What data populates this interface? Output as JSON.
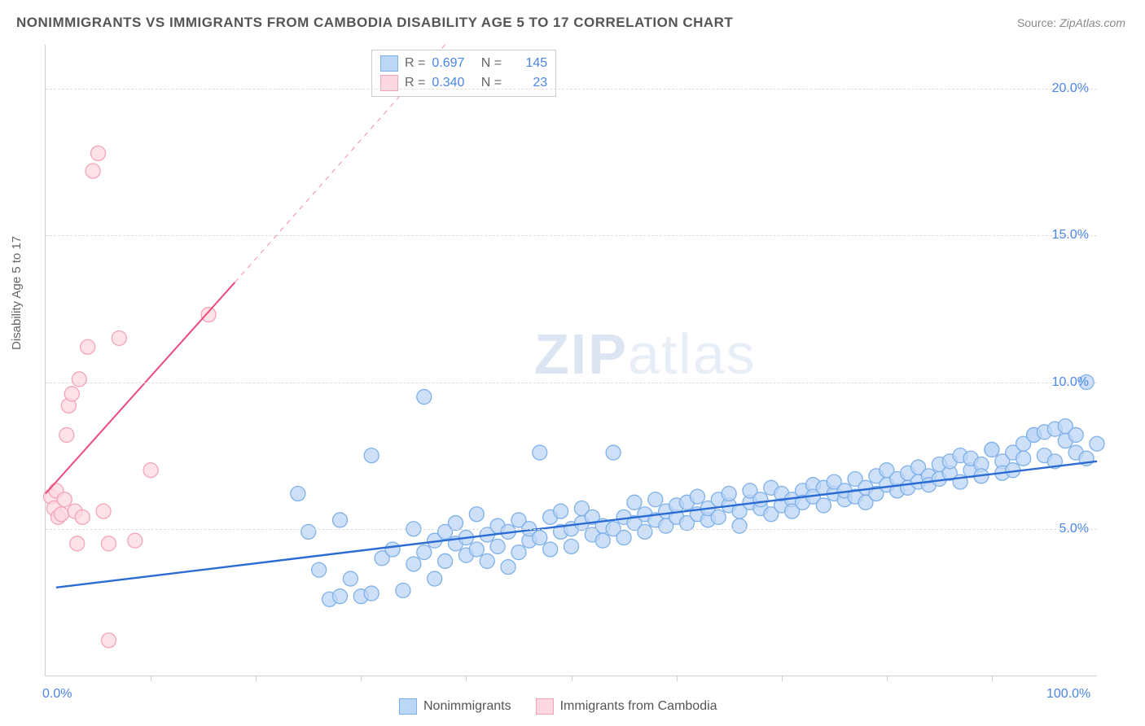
{
  "title": "NONIMMIGRANTS VS IMMIGRANTS FROM CAMBODIA DISABILITY AGE 5 TO 17 CORRELATION CHART",
  "source_label": "Source:",
  "source_value": "ZipAtlas.com",
  "ylabel": "Disability Age 5 to 17",
  "watermark_a": "ZIP",
  "watermark_b": "atlas",
  "chart": {
    "type": "scatter",
    "background": "#ffffff",
    "grid_color": "#dddddd",
    "axis_color": "#d0d0d0",
    "xlim": [
      0,
      100
    ],
    "ylim": [
      0,
      21.5
    ],
    "xticks_minor": [
      10,
      20,
      30,
      40,
      50,
      60,
      70,
      80,
      90
    ],
    "xtick_labels": [
      {
        "x": 0,
        "label": "0.0%"
      },
      {
        "x": 100,
        "label": "100.0%"
      }
    ],
    "yticks": [
      {
        "y": 5,
        "label": "5.0%"
      },
      {
        "y": 10,
        "label": "10.0%"
      },
      {
        "y": 15,
        "label": "15.0%"
      },
      {
        "y": 20,
        "label": "20.0%"
      }
    ],
    "series": [
      {
        "name": "Nonimmigrants",
        "color_fill": "#bcd6f5",
        "color_stroke": "#7fb1e8",
        "line_color": "#2b6cd4",
        "line_width": 2.4,
        "marker_r": 9,
        "R": "0.697",
        "N": "145",
        "trend": {
          "x1": 1,
          "y1": 3.0,
          "x2": 100,
          "y2": 7.3
        },
        "points": [
          [
            24,
            6.2
          ],
          [
            25,
            4.9
          ],
          [
            26,
            3.6
          ],
          [
            27,
            2.6
          ],
          [
            28,
            2.7
          ],
          [
            28,
            5.3
          ],
          [
            29,
            3.3
          ],
          [
            30,
            2.7
          ],
          [
            31,
            7.5
          ],
          [
            31,
            2.8
          ],
          [
            32,
            4.0
          ],
          [
            33,
            4.3
          ],
          [
            34,
            2.9
          ],
          [
            35,
            3.8
          ],
          [
            35,
            5.0
          ],
          [
            36,
            4.2
          ],
          [
            36,
            9.5
          ],
          [
            37,
            4.6
          ],
          [
            37,
            3.3
          ],
          [
            38,
            4.9
          ],
          [
            38,
            3.9
          ],
          [
            39,
            4.5
          ],
          [
            39,
            5.2
          ],
          [
            40,
            4.1
          ],
          [
            40,
            4.7
          ],
          [
            41,
            5.5
          ],
          [
            41,
            4.3
          ],
          [
            42,
            4.8
          ],
          [
            42,
            3.9
          ],
          [
            43,
            4.4
          ],
          [
            43,
            5.1
          ],
          [
            44,
            3.7
          ],
          [
            44,
            4.9
          ],
          [
            45,
            4.2
          ],
          [
            45,
            5.3
          ],
          [
            46,
            4.6
          ],
          [
            46,
            5.0
          ],
          [
            47,
            7.6
          ],
          [
            47,
            4.7
          ],
          [
            48,
            5.4
          ],
          [
            48,
            4.3
          ],
          [
            49,
            4.9
          ],
          [
            49,
            5.6
          ],
          [
            50,
            5.0
          ],
          [
            50,
            4.4
          ],
          [
            51,
            5.2
          ],
          [
            51,
            5.7
          ],
          [
            52,
            4.8
          ],
          [
            52,
            5.4
          ],
          [
            53,
            5.1
          ],
          [
            53,
            4.6
          ],
          [
            54,
            7.6
          ],
          [
            54,
            5.0
          ],
          [
            55,
            5.4
          ],
          [
            55,
            4.7
          ],
          [
            56,
            5.2
          ],
          [
            56,
            5.9
          ],
          [
            57,
            5.5
          ],
          [
            57,
            4.9
          ],
          [
            58,
            5.3
          ],
          [
            58,
            6.0
          ],
          [
            59,
            5.6
          ],
          [
            59,
            5.1
          ],
          [
            60,
            5.4
          ],
          [
            60,
            5.8
          ],
          [
            61,
            5.2
          ],
          [
            61,
            5.9
          ],
          [
            62,
            5.5
          ],
          [
            62,
            6.1
          ],
          [
            63,
            5.3
          ],
          [
            63,
            5.7
          ],
          [
            64,
            6.0
          ],
          [
            64,
            5.4
          ],
          [
            65,
            5.8
          ],
          [
            65,
            6.2
          ],
          [
            66,
            5.6
          ],
          [
            66,
            5.1
          ],
          [
            67,
            5.9
          ],
          [
            67,
            6.3
          ],
          [
            68,
            5.7
          ],
          [
            68,
            6.0
          ],
          [
            69,
            6.4
          ],
          [
            69,
            5.5
          ],
          [
            70,
            5.8
          ],
          [
            70,
            6.2
          ],
          [
            71,
            6.0
          ],
          [
            71,
            5.6
          ],
          [
            72,
            6.3
          ],
          [
            72,
            5.9
          ],
          [
            73,
            6.5
          ],
          [
            73,
            6.1
          ],
          [
            74,
            5.8
          ],
          [
            74,
            6.4
          ],
          [
            75,
            6.2
          ],
          [
            75,
            6.6
          ],
          [
            76,
            6.0
          ],
          [
            76,
            6.3
          ],
          [
            77,
            6.7
          ],
          [
            77,
            6.1
          ],
          [
            78,
            6.4
          ],
          [
            78,
            5.9
          ],
          [
            79,
            6.8
          ],
          [
            79,
            6.2
          ],
          [
            80,
            6.5
          ],
          [
            80,
            7.0
          ],
          [
            81,
            6.3
          ],
          [
            81,
            6.7
          ],
          [
            82,
            6.9
          ],
          [
            82,
            6.4
          ],
          [
            83,
            6.6
          ],
          [
            83,
            7.1
          ],
          [
            84,
            6.8
          ],
          [
            84,
            6.5
          ],
          [
            85,
            7.2
          ],
          [
            85,
            6.7
          ],
          [
            86,
            6.9
          ],
          [
            86,
            7.3
          ],
          [
            87,
            7.5
          ],
          [
            87,
            6.6
          ],
          [
            88,
            7.0
          ],
          [
            88,
            7.4
          ],
          [
            89,
            7.2
          ],
          [
            89,
            6.8
          ],
          [
            90,
            7.7
          ],
          [
            90,
            7.7
          ],
          [
            91,
            7.3
          ],
          [
            91,
            6.9
          ],
          [
            92,
            7.6
          ],
          [
            92,
            7.0
          ],
          [
            93,
            7.4
          ],
          [
            93,
            7.9
          ],
          [
            94,
            8.2
          ],
          [
            94,
            8.2
          ],
          [
            95,
            7.5
          ],
          [
            95,
            8.3
          ],
          [
            96,
            8.4
          ],
          [
            96,
            7.3
          ],
          [
            97,
            8.0
          ],
          [
            97,
            8.5
          ],
          [
            98,
            8.2
          ],
          [
            98,
            7.6
          ],
          [
            99,
            7.4
          ],
          [
            99,
            10.0
          ],
          [
            100,
            7.9
          ]
        ]
      },
      {
        "name": "Immigrants from Cambodia",
        "color_fill": "#fcd8e0",
        "color_stroke": "#f3a4b8",
        "line_color": "#e94b7a",
        "line_width": 2.0,
        "marker_r": 9,
        "R": "0.340",
        "N": "23",
        "trend_solid": {
          "x1": 0,
          "y1": 6.2,
          "x2": 18,
          "y2": 13.4
        },
        "trend_dashed": {
          "x1": 18,
          "y1": 13.4,
          "x2": 38,
          "y2": 21.5
        },
        "points": [
          [
            0.5,
            6.1
          ],
          [
            0.8,
            5.7
          ],
          [
            1.0,
            6.3
          ],
          [
            1.2,
            5.4
          ],
          [
            1.5,
            5.5
          ],
          [
            1.8,
            6.0
          ],
          [
            2.0,
            8.2
          ],
          [
            2.2,
            9.2
          ],
          [
            2.5,
            9.6
          ],
          [
            2.8,
            5.6
          ],
          [
            3.0,
            4.5
          ],
          [
            3.2,
            10.1
          ],
          [
            3.5,
            5.4
          ],
          [
            4.0,
            11.2
          ],
          [
            4.5,
            17.2
          ],
          [
            5.0,
            17.8
          ],
          [
            5.5,
            5.6
          ],
          [
            6.0,
            4.5
          ],
          [
            7.0,
            11.5
          ],
          [
            8.5,
            4.6
          ],
          [
            10.0,
            7.0
          ],
          [
            15.5,
            12.3
          ],
          [
            6,
            1.2
          ]
        ]
      }
    ]
  },
  "legend_bottom": [
    {
      "swatch_fill": "#bcd6f5",
      "swatch_stroke": "#7fb1e8",
      "label": "Nonimmigrants"
    },
    {
      "swatch_fill": "#fcd8e0",
      "swatch_stroke": "#f3a4b8",
      "label": "Immigrants from Cambodia"
    }
  ],
  "statbox": {
    "rows": [
      {
        "swatch_fill": "#bcd6f5",
        "swatch_stroke": "#7fb1e8",
        "R": "0.697",
        "N": "145"
      },
      {
        "swatch_fill": "#fcd8e0",
        "swatch_stroke": "#f3a4b8",
        "R": "0.340",
        "N": "  23"
      }
    ]
  }
}
